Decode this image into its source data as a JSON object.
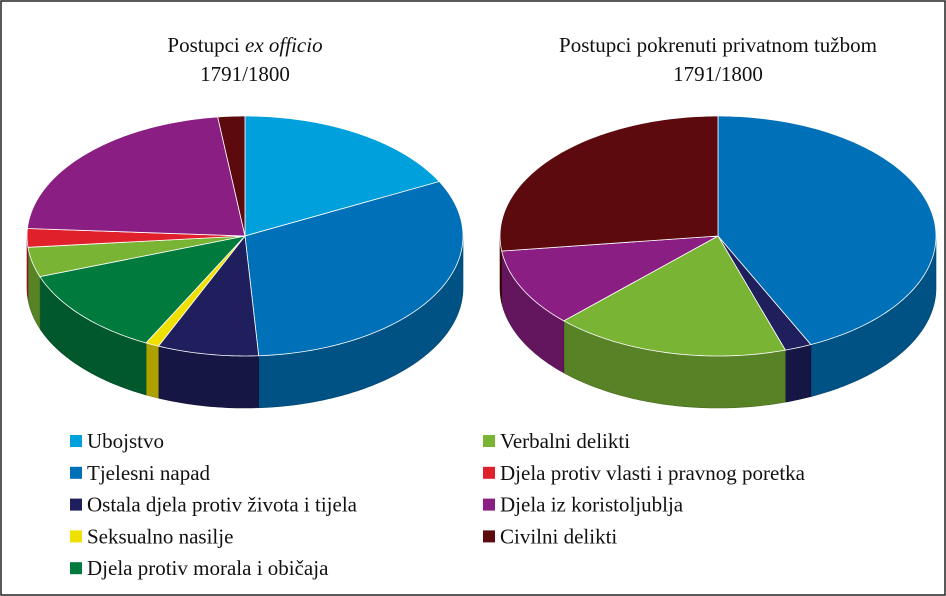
{
  "chart_data": [
    {
      "type": "pie3d",
      "title_parts": [
        "Postupci",
        "ex officio"
      ],
      "subtitle": "1791/1800",
      "categories": [
        "Ubojstvo",
        "Tjelesni napad",
        "Ostala djela protiv života i tijela",
        "Seksualno nasilje",
        "Djela protiv morala i običaja",
        "Verbalni delikti",
        "Djela protiv vlasti i pravnog poretka",
        "Djela iz koristoljublja",
        "Civilni delikti"
      ],
      "values": [
        17.5,
        31.5,
        7.5,
        1,
        12,
        4,
        2.5,
        22,
        2
      ],
      "colors": [
        "#00a0dc",
        "#0070b8",
        "#1f1f5e",
        "#f0e000",
        "#007a3d",
        "#7ab435",
        "#e0202a",
        "#8a1e82",
        "#5c0a0e"
      ]
    },
    {
      "type": "pie3d",
      "title": "Postupci pokrenuti privatnom tužbom",
      "subtitle": "1791/1800",
      "categories": [
        "Ubojstvo",
        "Tjelesni napad",
        "Ostala djela protiv života i tijela",
        "Seksualno nasilje",
        "Djela protiv morala i običaja",
        "Verbalni delikti",
        "Djela protiv vlasti i pravnog poretka",
        "Djela iz koristoljublja",
        "Civilni delikti"
      ],
      "values": [
        0,
        43,
        2,
        0,
        0,
        17.5,
        0,
        10.5,
        27
      ],
      "colors": [
        "#00a0dc",
        "#0070b8",
        "#1f1f5e",
        "#f0e000",
        "#007a3d",
        "#7ab435",
        "#e0202a",
        "#8a1e82",
        "#5c0a0e"
      ]
    }
  ]
}
